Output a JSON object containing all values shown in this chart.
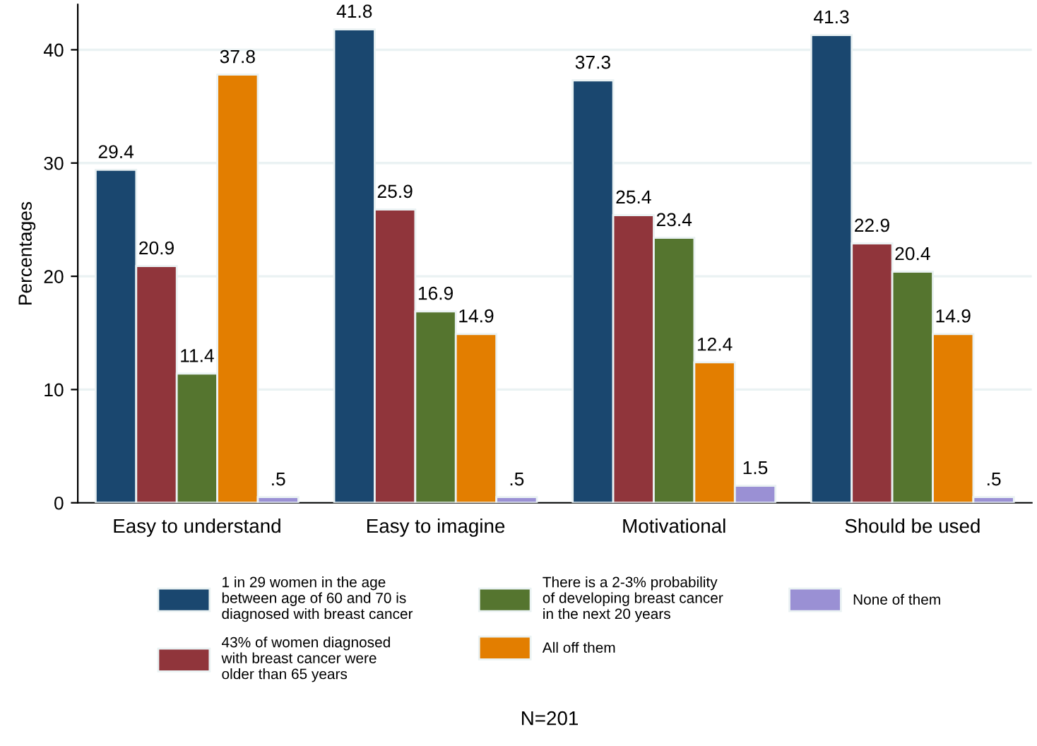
{
  "chart_data": {
    "type": "bar",
    "ylabel": "Percentages",
    "categories": [
      "Easy to understand",
      "Easy to imagine",
      "Motivational",
      "Should be used"
    ],
    "series": [
      {
        "name": "1 in 29 women in the age\nbetween age of 60 and 70 is\ndiagnosed with breast cancer",
        "color": "#1a476f",
        "values": [
          29.4,
          41.8,
          37.3,
          41.3
        ],
        "value_labels": [
          "29.4",
          "41.8",
          "37.3",
          "41.3"
        ]
      },
      {
        "name": "43% of women diagnosed\nwith breast cancer were\nolder than 65 years",
        "color": "#90353b",
        "values": [
          20.9,
          25.9,
          25.4,
          22.9
        ],
        "value_labels": [
          "20.9",
          "25.9",
          "25.4",
          "22.9"
        ]
      },
      {
        "name": "There is a 2-3% probability\nof developing breast cancer\nin the next 20 years",
        "color": "#55752f",
        "values": [
          11.4,
          16.9,
          23.4,
          20.4
        ],
        "value_labels": [
          "11.4",
          "16.9",
          "23.4",
          "20.4"
        ]
      },
      {
        "name": "All off them",
        "color": "#e37e00",
        "values": [
          37.8,
          14.9,
          12.4,
          14.9
        ],
        "value_labels": [
          "37.8",
          "14.9",
          "12.4",
          "14.9"
        ]
      },
      {
        "name": "None of them",
        "color": "#9a90d4",
        "values": [
          0.5,
          0.5,
          1.5,
          0.5
        ],
        "value_labels": [
          ".5",
          ".5",
          "1.5",
          ".5"
        ]
      }
    ],
    "ylim": [
      0,
      44
    ],
    "yticks": [
      0,
      10,
      20,
      30,
      40
    ],
    "grid": "y",
    "legend": "bottom",
    "annotations": [
      "N=201"
    ]
  }
}
